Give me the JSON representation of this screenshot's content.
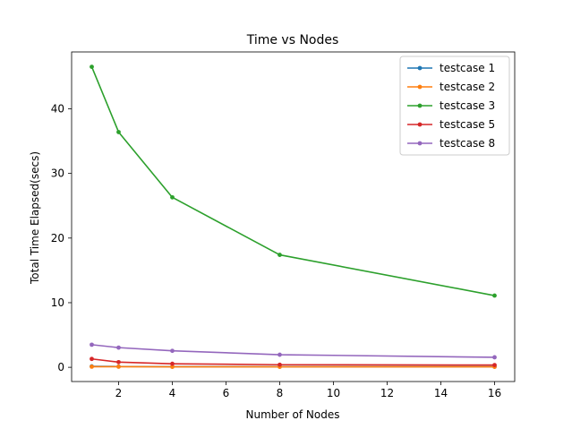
{
  "chart_data": {
    "type": "line",
    "title": "Time vs Nodes",
    "xlabel": "Number of Nodes",
    "ylabel": "Total Time Elapsed(secs)",
    "xlim": [
      0.25,
      16.75
    ],
    "ylim": [
      -2.2,
      48.8
    ],
    "xticks": [
      2,
      4,
      6,
      8,
      10,
      12,
      14,
      16
    ],
    "yticks": [
      0,
      10,
      20,
      30,
      40
    ],
    "legend_position": "top-right",
    "x": [
      1,
      2,
      4,
      8,
      16
    ],
    "series": [
      {
        "name": "testcase 1",
        "color": "#1f77b4",
        "values": [
          0.15,
          0.12,
          0.1,
          0.1,
          0.1
        ]
      },
      {
        "name": "testcase 2",
        "color": "#ff7f0e",
        "values": [
          0.1,
          0.1,
          0.08,
          0.08,
          0.08
        ]
      },
      {
        "name": "testcase 3",
        "color": "#2ca02c",
        "values": [
          46.5,
          36.4,
          26.3,
          17.4,
          11.1
        ]
      },
      {
        "name": "testcase 5",
        "color": "#d62728",
        "values": [
          1.3,
          0.8,
          0.55,
          0.4,
          0.35
        ]
      },
      {
        "name": "testcase 8",
        "color": "#9467bd",
        "values": [
          3.5,
          3.05,
          2.55,
          1.95,
          1.55
        ]
      }
    ]
  }
}
